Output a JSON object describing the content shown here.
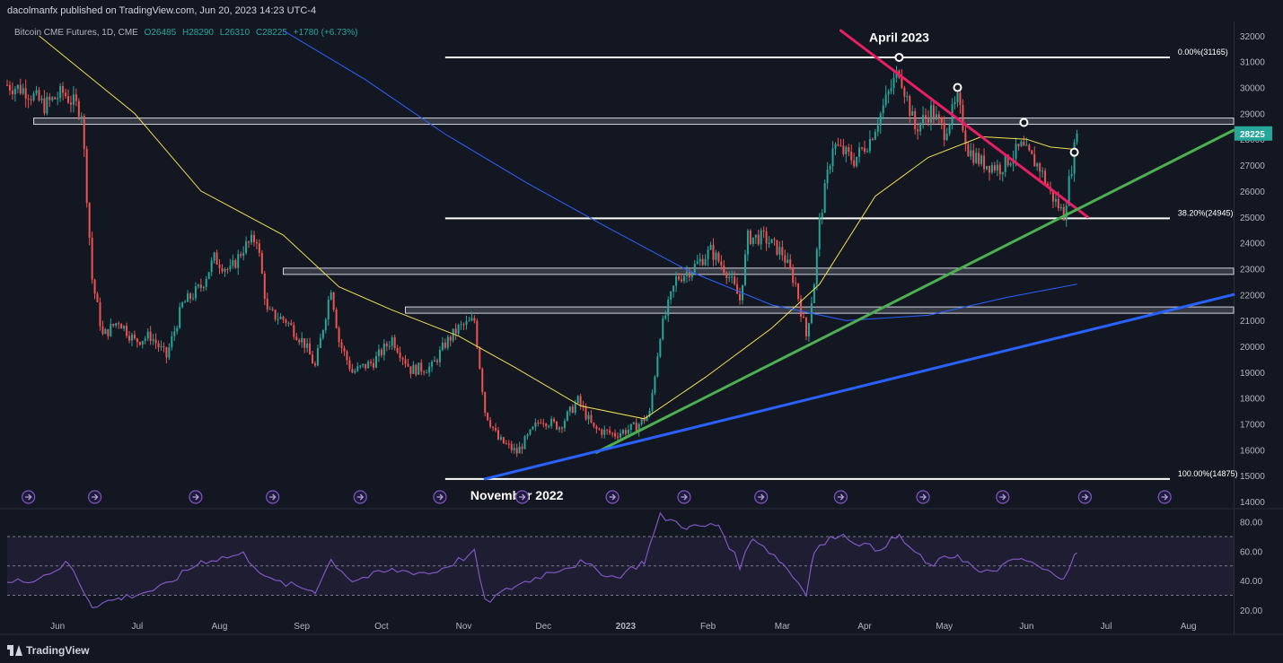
{
  "header": {
    "publisher_line": "dacolmanfx published on TradingView.com, Jun 20, 2023 14:23 UTC-4",
    "symbol": "Bitcoin CME Futures, 1D, CME",
    "open": "O26485",
    "high": "H28290",
    "low": "L26310",
    "close": "C28225",
    "change": "+1780 (+6.73%)"
  },
  "footer": {
    "brand": "TradingView"
  },
  "colors": {
    "background": "#131722",
    "up": "#26a69a",
    "down": "#ef5350",
    "sma50": "#f0e04e",
    "sma200": "#2962ff",
    "rsi": "#7e57c2",
    "resistance": "#e91e63",
    "support_green": "#4caf50",
    "support_blue": "#2962ff",
    "price_badge": "#26a69a"
  },
  "chart_data": [
    {
      "type": "candlestick",
      "y_axis": {
        "ticks": [
          32000,
          31000,
          30000,
          29000,
          28000,
          27000,
          26000,
          25000,
          24000,
          23000,
          22000,
          21000,
          20000,
          19000,
          18000,
          17000,
          16000,
          15000,
          14000
        ],
        "range": [
          13760,
          32550
        ]
      },
      "x_axis": {
        "range": [
          "2022-05-13",
          "2023-08-18"
        ],
        "ticks": [
          {
            "label": "Jun",
            "date": "2022-06-01"
          },
          {
            "label": "Jul",
            "date": "2022-07-01"
          },
          {
            "label": "Aug",
            "date": "2022-08-01"
          },
          {
            "label": "Sep",
            "date": "2022-09-01"
          },
          {
            "label": "Oct",
            "date": "2022-10-01"
          },
          {
            "label": "Nov",
            "date": "2022-11-01"
          },
          {
            "label": "Dec",
            "date": "2022-12-01"
          },
          {
            "label": "2023",
            "date": "2023-01-01"
          },
          {
            "label": "Feb",
            "date": "2023-02-01"
          },
          {
            "label": "Mar",
            "date": "2023-03-01"
          },
          {
            "label": "Apr",
            "date": "2023-04-01"
          },
          {
            "label": "May",
            "date": "2023-05-01"
          },
          {
            "label": "Jun",
            "date": "2023-06-01"
          },
          {
            "label": "Jul",
            "date": "2023-07-01"
          },
          {
            "label": "Aug",
            "date": "2023-08-01"
          }
        ]
      },
      "last_price": 28225,
      "price_path": [
        [
          "2022-05-13",
          30100
        ],
        [
          "2022-05-20",
          29900
        ],
        [
          "2022-05-27",
          29300
        ],
        [
          "2022-06-03",
          29800
        ],
        [
          "2022-06-10",
          29100
        ],
        [
          "2022-06-14",
          22600
        ],
        [
          "2022-06-18",
          20400
        ],
        [
          "2022-06-24",
          21000
        ],
        [
          "2022-06-30",
          20200
        ],
        [
          "2022-07-06",
          20400
        ],
        [
          "2022-07-12",
          19600
        ],
        [
          "2022-07-18",
          21600
        ],
        [
          "2022-07-25",
          22300
        ],
        [
          "2022-07-30",
          23400
        ],
        [
          "2022-08-05",
          22900
        ],
        [
          "2022-08-10",
          23800
        ],
        [
          "2022-08-15",
          24200
        ],
        [
          "2022-08-19",
          21300
        ],
        [
          "2022-08-26",
          21000
        ],
        [
          "2022-09-02",
          20100
        ],
        [
          "2022-09-06",
          19200
        ],
        [
          "2022-09-12",
          22300
        ],
        [
          "2022-09-15",
          20200
        ],
        [
          "2022-09-20",
          19000
        ],
        [
          "2022-09-28",
          19400
        ],
        [
          "2022-10-05",
          20300
        ],
        [
          "2022-10-12",
          19100
        ],
        [
          "2022-10-20",
          19200
        ],
        [
          "2022-10-25",
          20100
        ],
        [
          "2022-10-30",
          20700
        ],
        [
          "2022-11-05",
          21000
        ],
        [
          "2022-11-09",
          17500
        ],
        [
          "2022-11-14",
          16400
        ],
        [
          "2022-11-21",
          15900
        ],
        [
          "2022-11-30",
          17200
        ],
        [
          "2022-12-07",
          16900
        ],
        [
          "2022-12-14",
          17900
        ],
        [
          "2022-12-20",
          16800
        ],
        [
          "2022-12-28",
          16600
        ],
        [
          "2023-01-05",
          16900
        ],
        [
          "2023-01-10",
          17400
        ],
        [
          "2023-01-14",
          20500
        ],
        [
          "2023-01-20",
          22600
        ],
        [
          "2023-01-26",
          23000
        ],
        [
          "2023-02-02",
          23700
        ],
        [
          "2023-02-08",
          22900
        ],
        [
          "2023-02-13",
          21800
        ],
        [
          "2023-02-16",
          24200
        ],
        [
          "2023-02-22",
          24200
        ],
        [
          "2023-03-01",
          23600
        ],
        [
          "2023-03-06",
          22400
        ],
        [
          "2023-03-10",
          20400
        ],
        [
          "2023-03-13",
          22500
        ],
        [
          "2023-03-15",
          24800
        ],
        [
          "2023-03-20",
          27800
        ],
        [
          "2023-03-28",
          27200
        ],
        [
          "2023-04-03",
          28000
        ],
        [
          "2023-04-11",
          30000
        ],
        [
          "2023-04-14",
          30700
        ],
        [
          "2023-04-20",
          28400
        ],
        [
          "2023-04-26",
          29100
        ],
        [
          "2023-05-01",
          28300
        ],
        [
          "2023-05-06",
          29500
        ],
        [
          "2023-05-10",
          27600
        ],
        [
          "2023-05-15",
          27100
        ],
        [
          "2023-05-22",
          26900
        ],
        [
          "2023-05-30",
          27700
        ],
        [
          "2023-06-06",
          26900
        ],
        [
          "2023-06-10",
          25900
        ],
        [
          "2023-06-15",
          25100
        ],
        [
          "2023-06-20",
          28225
        ]
      ],
      "series": [
        {
          "type": "line",
          "points": [
            [
              "2022-05-25",
              32000
            ],
            [
              "2022-06-30",
              29000
            ],
            [
              "2022-07-25",
              26000
            ],
            [
              "2022-08-25",
              24300
            ],
            [
              "2022-09-15",
              22300
            ],
            [
              "2022-10-05",
              21400
            ],
            [
              "2022-10-30",
              20400
            ],
            [
              "2022-11-20",
              19200
            ],
            [
              "2022-12-15",
              17700
            ],
            [
              "2023-01-08",
              17200
            ],
            [
              "2023-01-31",
              18800
            ],
            [
              "2023-02-25",
              20700
            ],
            [
              "2023-03-15",
              22400
            ],
            [
              "2023-04-05",
              25800
            ],
            [
              "2023-04-25",
              27300
            ],
            [
              "2023-05-15",
              28100
            ],
            [
              "2023-06-01",
              28000
            ],
            [
              "2023-06-10",
              27700
            ],
            [
              "2023-06-20",
              27600
            ]
          ]
        },
        {
          "type": "line",
          "points": [
            [
              "2022-08-25",
              32200
            ],
            [
              "2022-09-25",
              30300
            ],
            [
              "2022-10-25",
              28200
            ],
            [
              "2022-11-25",
              26300
            ],
            [
              "2022-12-25",
              24600
            ],
            [
              "2023-01-25",
              22900
            ],
            [
              "2023-02-25",
              21600
            ],
            [
              "2023-03-25",
              21000
            ],
            [
              "2023-04-25",
              21200
            ],
            [
              "2023-05-25",
              21900
            ],
            [
              "2023-06-20",
              22400
            ]
          ]
        }
      ],
      "annotations": {
        "fib_levels": [
          {
            "label": "0.00%(31165)",
            "value": 31165
          },
          {
            "label": "38.20%(24945)",
            "value": 24945
          },
          {
            "label": "100.00%(14875)",
            "value": 14875
          }
        ],
        "horizontal_zones": [
          {
            "value": 28700
          },
          {
            "value": 22900
          },
          {
            "value": 21400
          }
        ],
        "trendlines": [
          {
            "name": "resistance",
            "from": [
              "2023-03-23",
              32200
            ],
            "to": [
              "2023-06-24",
              25000
            ]
          },
          {
            "name": "support-green",
            "from": [
              "2022-12-21",
              15900
            ],
            "to": [
              "2023-08-18",
              28350
            ]
          },
          {
            "name": "support-blue",
            "from": [
              "2022-11-09",
              14875
            ],
            "to": [
              "2023-08-18",
              22000
            ]
          }
        ],
        "touch_points": [
          {
            "date": "2023-04-14",
            "value": 31165
          },
          {
            "date": "2023-05-06",
            "value": 30000
          },
          {
            "date": "2023-05-31",
            "value": 28650
          },
          {
            "date": "2023-06-19",
            "value": 27500
          }
        ],
        "labels": [
          {
            "text": "April 2023",
            "date": "2023-04-14",
            "value": 31950
          },
          {
            "text": "November 2022",
            "date": "2022-11-21",
            "value": 14250
          }
        ],
        "event_markers": [
          "2022-05-21",
          "2022-06-15",
          "2022-07-23",
          "2022-08-21",
          "2022-09-23",
          "2022-10-23",
          "2022-11-23",
          "2022-12-27",
          "2023-01-23",
          "2023-02-21",
          "2023-03-23",
          "2023-04-23",
          "2023-05-23",
          "2023-06-23",
          "2023-07-23"
        ]
      }
    },
    {
      "type": "line",
      "y_axis": {
        "ticks": [
          80,
          60,
          40,
          20
        ],
        "range": [
          15.6,
          88.4
        ]
      },
      "reference_levels": [
        70,
        50,
        30
      ],
      "series": [
        {
          "points": [
            [
              "2022-05-13",
              38
            ],
            [
              "2022-05-25",
              42
            ],
            [
              "2022-06-05",
              52
            ],
            [
              "2022-06-14",
              23
            ],
            [
              "2022-06-25",
              28
            ],
            [
              "2022-07-10",
              35
            ],
            [
              "2022-07-25",
              53
            ],
            [
              "2022-08-10",
              58
            ],
            [
              "2022-08-20",
              40
            ],
            [
              "2022-09-06",
              33
            ],
            [
              "2022-09-12",
              54
            ],
            [
              "2022-09-20",
              40
            ],
            [
              "2022-10-05",
              47
            ],
            [
              "2022-10-20",
              45
            ],
            [
              "2022-11-05",
              59
            ],
            [
              "2022-11-09",
              25
            ],
            [
              "2022-11-20",
              36
            ],
            [
              "2022-12-05",
              47
            ],
            [
              "2022-12-15",
              52
            ],
            [
              "2022-12-28",
              42
            ],
            [
              "2023-01-08",
              53
            ],
            [
              "2023-01-14",
              84
            ],
            [
              "2023-01-25",
              76
            ],
            [
              "2023-02-05",
              78
            ],
            [
              "2023-02-13",
              50
            ],
            [
              "2023-02-18",
              70
            ],
            [
              "2023-03-01",
              52
            ],
            [
              "2023-03-10",
              32
            ],
            [
              "2023-03-13",
              60
            ],
            [
              "2023-03-22",
              72
            ],
            [
              "2023-04-05",
              61
            ],
            [
              "2023-04-14",
              70
            ],
            [
              "2023-04-25",
              50
            ],
            [
              "2023-05-06",
              58
            ],
            [
              "2023-05-15",
              44
            ],
            [
              "2023-05-30",
              55
            ],
            [
              "2023-06-10",
              45
            ],
            [
              "2023-06-15",
              43
            ],
            [
              "2023-06-20",
              59
            ]
          ]
        }
      ]
    }
  ]
}
